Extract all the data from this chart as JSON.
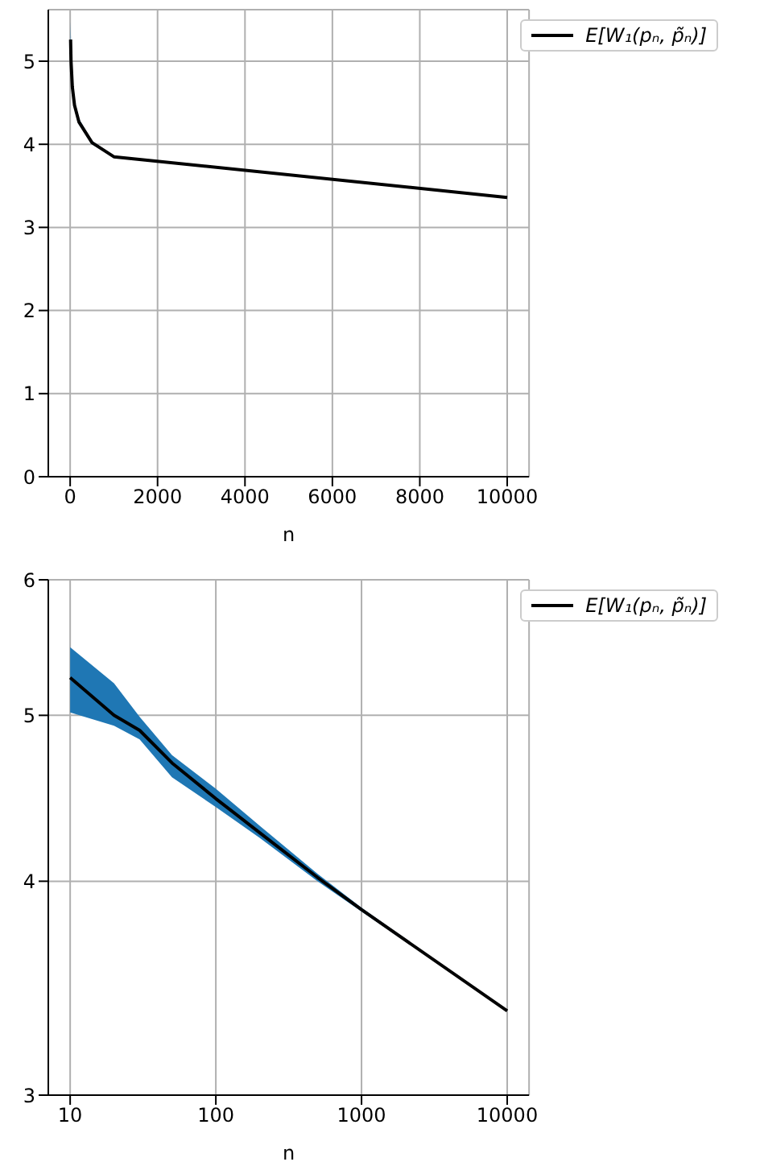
{
  "chart_data": [
    {
      "type": "line",
      "xlabel": "n",
      "xlim": [
        -500,
        10500
      ],
      "xticks": [
        0,
        2000,
        4000,
        6000,
        8000,
        10000
      ],
      "ylim": [
        0,
        5.62
      ],
      "yticks": [
        0,
        1,
        2,
        3,
        4,
        5
      ],
      "grid": true,
      "legend": "top right",
      "series": [
        {
          "name": "E[W₁(pₙ, p̃ₙ)]",
          "color": "#000000",
          "x": [
            10,
            20,
            30,
            50,
            100,
            200,
            500,
            1000,
            10000
          ],
          "values": [
            5.26,
            5.0,
            4.9,
            4.69,
            4.47,
            4.27,
            4.02,
            3.85,
            3.36
          ],
          "lower": [
            5.02,
            4.93,
            4.84,
            4.6,
            4.42,
            4.24,
            4.0,
            3.84,
            3.36
          ],
          "upper": [
            5.48,
            5.22,
            4.99,
            4.74,
            4.53,
            4.31,
            4.04,
            3.86,
            3.36
          ]
        }
      ]
    },
    {
      "type": "line",
      "xlabel": "n",
      "log": "xy",
      "xlim": [
        7.08,
        14125
      ],
      "xticks": [
        10,
        100,
        1000,
        10000
      ],
      "ylim": [
        3,
        6
      ],
      "yticks": [
        3,
        4,
        5,
        6
      ],
      "grid": true,
      "legend": "top right",
      "series": [
        {
          "name": "E[W₁(pₙ, p̃ₙ)]",
          "color": "#000000",
          "x": [
            10,
            20,
            30,
            50,
            100,
            200,
            500,
            1000,
            10000
          ],
          "values": [
            5.26,
            5.0,
            4.9,
            4.69,
            4.47,
            4.27,
            4.02,
            3.85,
            3.36
          ],
          "lower": [
            5.02,
            4.93,
            4.84,
            4.6,
            4.42,
            4.24,
            4.0,
            3.84,
            3.36
          ],
          "upper": [
            5.48,
            5.22,
            4.99,
            4.74,
            4.53,
            4.31,
            4.04,
            3.86,
            3.36
          ]
        }
      ]
    }
  ]
}
